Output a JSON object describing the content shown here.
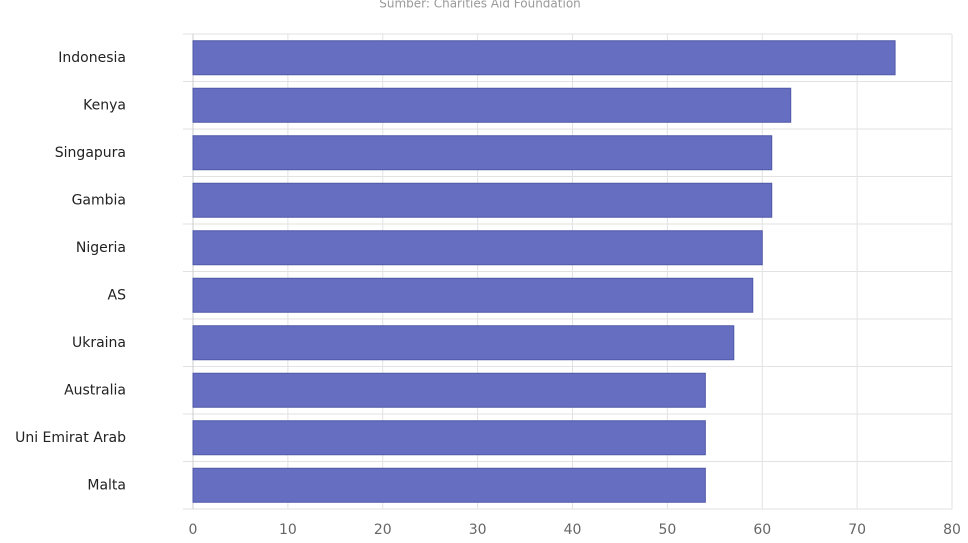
{
  "chart_data": {
    "type": "bar",
    "orientation": "horizontal",
    "subtitle": "Sumber: Charities Aid Foundation",
    "categories": [
      "Indonesia",
      "Kenya",
      "Singapura",
      "Gambia",
      "Nigeria",
      "AS",
      "Ukraina",
      "Australia",
      "Uni Emirat Arab",
      "Malta"
    ],
    "values": [
      74,
      63,
      61,
      61,
      60,
      59,
      57,
      54,
      54,
      54
    ],
    "color": "#666ec2",
    "xlim": [
      0,
      80
    ],
    "xticks": [
      0,
      10,
      20,
      30,
      40,
      50,
      60,
      70,
      80
    ],
    "grid": true
  }
}
